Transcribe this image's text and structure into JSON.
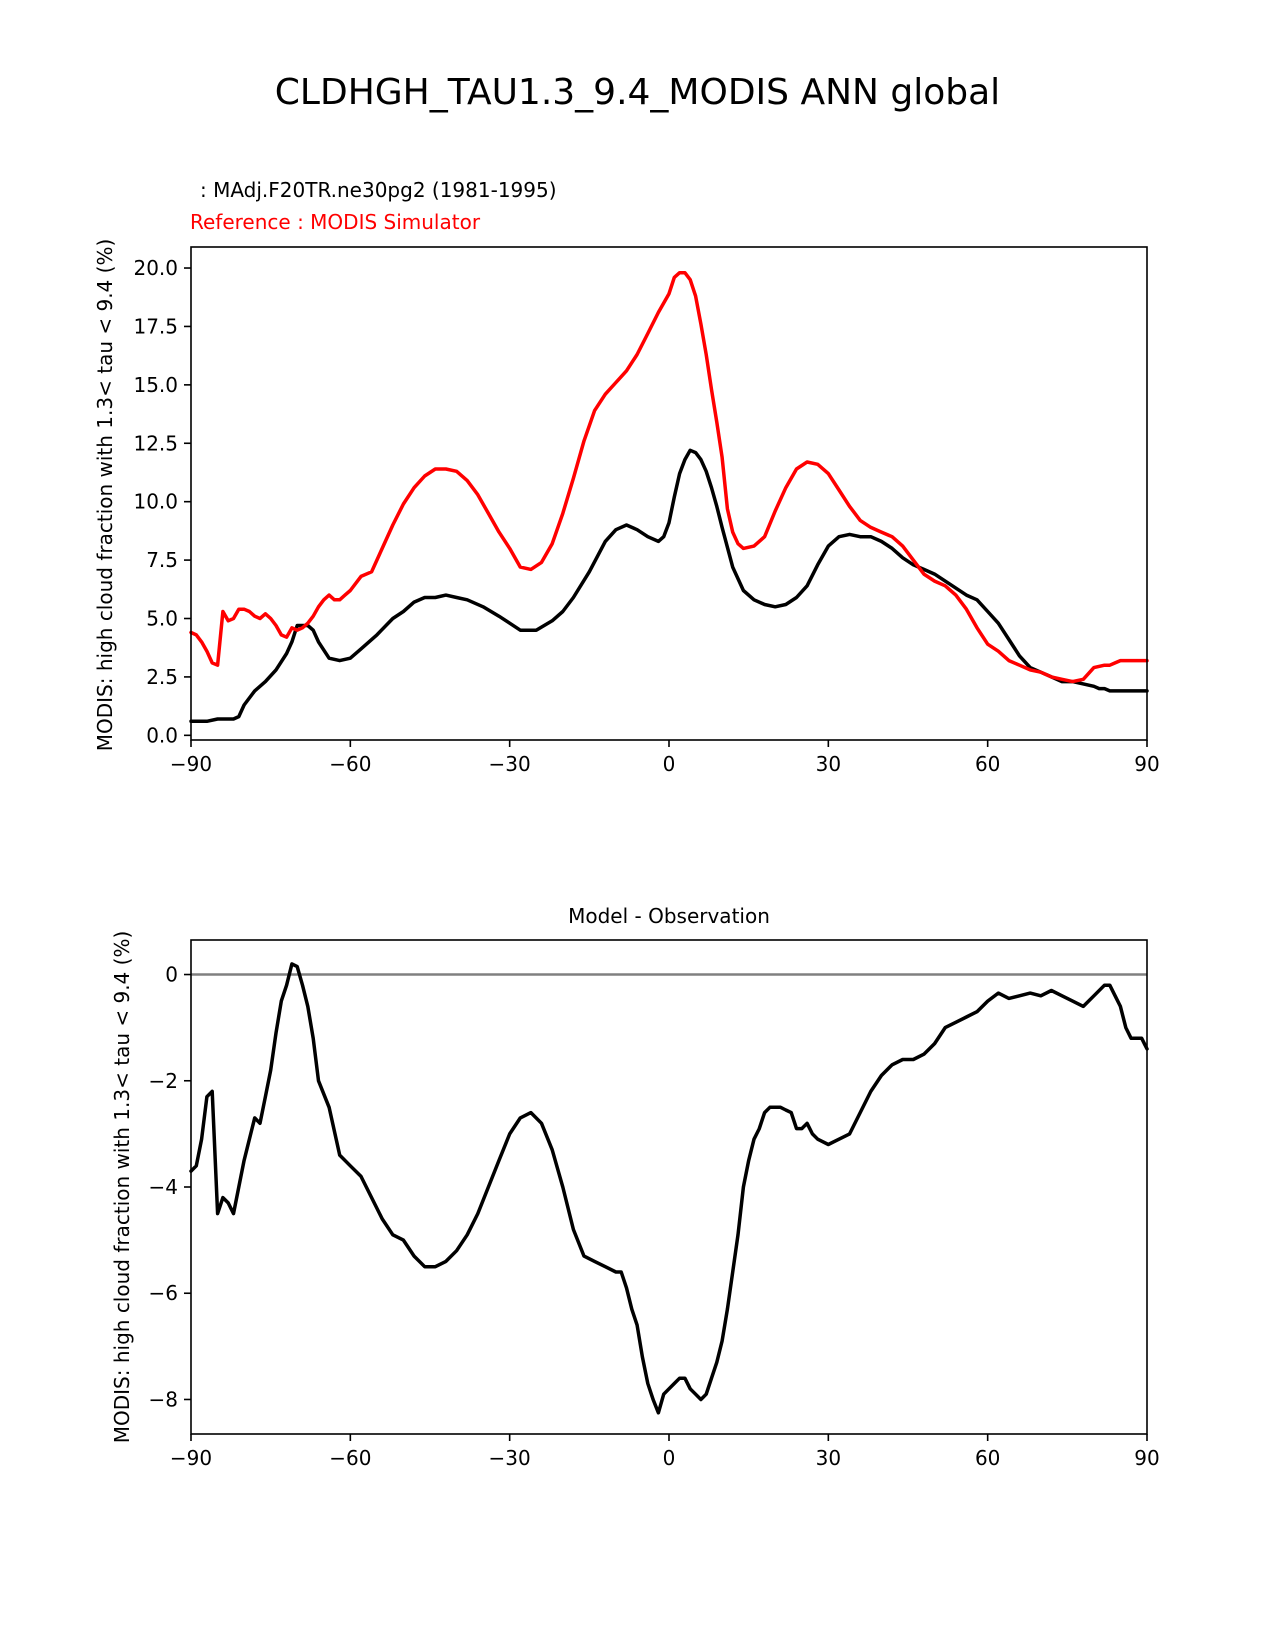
{
  "figure_title": "CLDHGH_TAU1.3_9.4_MODIS ANN global",
  "colors": {
    "test": "#000000",
    "reference": "#ff0000",
    "diff": "#000000",
    "zero_line": "#808080"
  },
  "chart_data": [
    {
      "type": "line",
      "test_label": " : MAdj.F20TR.ne30pg2 (1981-1995)",
      "reference_label": "Reference : MODIS Simulator",
      "xlabel": "",
      "ylabel": "MODIS: high cloud fraction with 1.3< tau < 9.4 (%)",
      "xlim": [
        -90,
        90
      ],
      "ylim": [
        -0.2,
        20.9
      ],
      "xticks": [
        -90,
        -60,
        -30,
        0,
        30,
        60,
        90
      ],
      "xtick_labels": [
        "−90",
        "−60",
        "−30",
        "0",
        "30",
        "60",
        "90"
      ],
      "yticks": [
        0,
        2.5,
        5,
        7.5,
        10,
        12.5,
        15,
        17.5,
        20
      ],
      "ytick_labels": [
        "0.0",
        "2.5",
        "5.0",
        "7.5",
        "10.0",
        "12.5",
        "15.0",
        "17.5",
        "20.0"
      ],
      "legend": "none",
      "grid": false,
      "series": [
        {
          "color": "#000000",
          "x": [
            -90,
            -87,
            -85,
            -82,
            -81,
            -80,
            -78,
            -76,
            -74,
            -72,
            -71,
            -70,
            -68,
            -67,
            -66,
            -64,
            -62,
            -60,
            -58,
            -55,
            -52,
            -50,
            -48,
            -46,
            -44,
            -42,
            -40,
            -38,
            -35,
            -32,
            -30,
            -28,
            -25,
            -22,
            -20,
            -18,
            -15,
            -12,
            -10,
            -8,
            -6,
            -4,
            -2,
            -1,
            0,
            1,
            2,
            3,
            4,
            5,
            6,
            7,
            8,
            9,
            10,
            12,
            14,
            16,
            18,
            20,
            22,
            24,
            26,
            28,
            30,
            32,
            34,
            36,
            38,
            40,
            42,
            44,
            46,
            48,
            50,
            52,
            54,
            56,
            58,
            60,
            62,
            64,
            66,
            68,
            70,
            72,
            74,
            76,
            78,
            80,
            81,
            82,
            83,
            84,
            85,
            86,
            87,
            88,
            90
          ],
          "y": [
            0.6,
            0.6,
            0.7,
            0.7,
            0.8,
            1.3,
            1.9,
            2.3,
            2.8,
            3.5,
            4.0,
            4.7,
            4.7,
            4.5,
            4.0,
            3.3,
            3.2,
            3.3,
            3.7,
            4.3,
            5.0,
            5.3,
            5.7,
            5.9,
            5.9,
            6.0,
            5.9,
            5.8,
            5.5,
            5.1,
            4.8,
            4.5,
            4.5,
            4.9,
            5.3,
            5.9,
            7.0,
            8.3,
            8.8,
            9.0,
            8.8,
            8.5,
            8.3,
            8.5,
            9.1,
            10.2,
            11.2,
            11.8,
            12.2,
            12.1,
            11.8,
            11.3,
            10.6,
            9.8,
            8.9,
            7.2,
            6.2,
            5.8,
            5.6,
            5.5,
            5.6,
            5.9,
            6.4,
            7.3,
            8.1,
            8.5,
            8.6,
            8.5,
            8.5,
            8.3,
            8.0,
            7.6,
            7.3,
            7.1,
            6.9,
            6.6,
            6.3,
            6.0,
            5.8,
            5.3,
            4.8,
            4.1,
            3.4,
            2.9,
            2.7,
            2.5,
            2.3,
            2.3,
            2.2,
            2.1,
            2.0,
            2.0,
            1.9,
            1.9,
            1.9,
            1.9,
            1.9,
            1.9,
            1.9
          ]
        },
        {
          "color": "#ff0000",
          "x": [
            -90,
            -89,
            -88,
            -87,
            -86,
            -85,
            -84,
            -83,
            -82,
            -81,
            -80,
            -79,
            -78,
            -77,
            -76,
            -75,
            -74,
            -73,
            -72,
            -71,
            -70,
            -69,
            -68,
            -67,
            -66,
            -65,
            -64,
            -63,
            -62,
            -61,
            -60,
            -58,
            -56,
            -54,
            -52,
            -50,
            -48,
            -46,
            -44,
            -42,
            -40,
            -38,
            -36,
            -34,
            -32,
            -30,
            -28,
            -26,
            -24,
            -22,
            -20,
            -18,
            -16,
            -14,
            -12,
            -10,
            -8,
            -6,
            -4,
            -2,
            0,
            1,
            2,
            3,
            4,
            5,
            6,
            7,
            8,
            9,
            10,
            11,
            12,
            13,
            14,
            16,
            18,
            20,
            22,
            24,
            26,
            28,
            30,
            32,
            34,
            36,
            38,
            40,
            42,
            44,
            46,
            48,
            50,
            52,
            54,
            56,
            58,
            60,
            62,
            64,
            66,
            68,
            70,
            72,
            74,
            76,
            78,
            80,
            82,
            83,
            84,
            85,
            86,
            87,
            88,
            89,
            90
          ],
          "y": [
            4.4,
            4.3,
            4.0,
            3.6,
            3.1,
            3.0,
            5.3,
            4.9,
            5.0,
            5.4,
            5.4,
            5.3,
            5.1,
            5.0,
            5.2,
            5.0,
            4.7,
            4.3,
            4.2,
            4.6,
            4.5,
            4.6,
            4.8,
            5.1,
            5.5,
            5.8,
            6.0,
            5.8,
            5.8,
            6.0,
            6.2,
            6.8,
            7.0,
            8.0,
            9.0,
            9.9,
            10.6,
            11.1,
            11.4,
            11.4,
            11.3,
            10.9,
            10.3,
            9.5,
            8.7,
            8.0,
            7.2,
            7.1,
            7.4,
            8.2,
            9.5,
            11.0,
            12.6,
            13.9,
            14.6,
            15.1,
            15.6,
            16.3,
            17.2,
            18.1,
            18.9,
            19.6,
            19.8,
            19.8,
            19.5,
            18.8,
            17.6,
            16.3,
            14.8,
            13.4,
            11.9,
            9.7,
            8.7,
            8.2,
            8.0,
            8.1,
            8.5,
            9.6,
            10.6,
            11.4,
            11.7,
            11.6,
            11.2,
            10.5,
            9.8,
            9.2,
            8.9,
            8.7,
            8.5,
            8.1,
            7.5,
            6.9,
            6.6,
            6.4,
            6.0,
            5.4,
            4.6,
            3.9,
            3.6,
            3.2,
            3.0,
            2.8,
            2.7,
            2.5,
            2.4,
            2.3,
            2.4,
            2.9,
            3.0,
            3.0,
            3.1,
            3.2,
            3.2,
            3.2,
            3.2,
            3.2,
            3.2
          ]
        }
      ]
    },
    {
      "type": "line",
      "title": "Model - Observation",
      "xlabel": "",
      "ylabel": "MODIS: high cloud fraction with 1.3< tau < 9.4 (%)",
      "xlim": [
        -90,
        90
      ],
      "ylim": [
        -8.65,
        0.65
      ],
      "xticks": [
        -90,
        -60,
        -30,
        0,
        30,
        60,
        90
      ],
      "xtick_labels": [
        "−90",
        "−60",
        "−30",
        "0",
        "30",
        "60",
        "90"
      ],
      "yticks": [
        0,
        -2,
        -4,
        -6,
        -8
      ],
      "ytick_labels": [
        "0",
        "−2",
        "−4",
        "−6",
        "−8"
      ],
      "zero_line": 0,
      "legend": "none",
      "grid": false,
      "series": [
        {
          "color": "#000000",
          "x": [
            -90,
            -89,
            -88,
            -87,
            -86,
            -85,
            -84,
            -83,
            -82,
            -81,
            -80,
            -78,
            -77,
            -76,
            -75,
            -74,
            -73,
            -72,
            -71,
            -70,
            -69,
            -68,
            -67,
            -66,
            -64,
            -62,
            -60,
            -58,
            -57,
            -56,
            -54,
            -52,
            -50,
            -48,
            -46,
            -44,
            -42,
            -40,
            -38,
            -36,
            -34,
            -32,
            -30,
            -28,
            -26,
            -24,
            -22,
            -20,
            -18,
            -16,
            -14,
            -12,
            -10,
            -9,
            -8,
            -7,
            -6,
            -5,
            -4,
            -3,
            -2,
            -1,
            0,
            1,
            2,
            3,
            4,
            5,
            6,
            7,
            8,
            9,
            10,
            11,
            12,
            13,
            14,
            15,
            16,
            17,
            18,
            19,
            20,
            21,
            22,
            23,
            24,
            25,
            26,
            27,
            28,
            30,
            32,
            34,
            36,
            38,
            40,
            42,
            44,
            46,
            48,
            50,
            52,
            54,
            56,
            58,
            60,
            62,
            64,
            66,
            68,
            70,
            72,
            74,
            76,
            78,
            80,
            82,
            83,
            84,
            85,
            86,
            87,
            88,
            89,
            90
          ],
          "y": [
            -3.7,
            -3.6,
            -3.1,
            -2.3,
            -2.2,
            -4.5,
            -4.2,
            -4.3,
            -4.5,
            -4.0,
            -3.5,
            -2.7,
            -2.8,
            -2.3,
            -1.8,
            -1.1,
            -0.5,
            -0.2,
            0.2,
            0.15,
            -0.2,
            -0.6,
            -1.2,
            -2.0,
            -2.5,
            -3.4,
            -3.6,
            -3.8,
            -4.0,
            -4.2,
            -4.6,
            -4.9,
            -5.0,
            -5.3,
            -5.5,
            -5.5,
            -5.4,
            -5.2,
            -4.9,
            -4.5,
            -4.0,
            -3.5,
            -3.0,
            -2.7,
            -2.6,
            -2.8,
            -3.3,
            -4.0,
            -4.8,
            -5.3,
            -5.4,
            -5.5,
            -5.6,
            -5.6,
            -5.9,
            -6.3,
            -6.6,
            -7.2,
            -7.7,
            -8.0,
            -8.25,
            -7.9,
            -7.8,
            -7.7,
            -7.6,
            -7.6,
            -7.8,
            -7.9,
            -8.0,
            -7.9,
            -7.6,
            -7.3,
            -6.9,
            -6.3,
            -5.6,
            -4.9,
            -4.0,
            -3.5,
            -3.1,
            -2.9,
            -2.6,
            -2.5,
            -2.5,
            -2.5,
            -2.55,
            -2.6,
            -2.9,
            -2.9,
            -2.8,
            -3.0,
            -3.1,
            -3.2,
            -3.1,
            -3.0,
            -2.6,
            -2.2,
            -1.9,
            -1.7,
            -1.6,
            -1.6,
            -1.5,
            -1.3,
            -1.0,
            -0.9,
            -0.8,
            -0.7,
            -0.5,
            -0.35,
            -0.45,
            -0.4,
            -0.35,
            -0.4,
            -0.3,
            -0.4,
            -0.5,
            -0.6,
            -0.4,
            -0.2,
            -0.2,
            -0.4,
            -0.6,
            -1.0,
            -1.2,
            -1.2,
            -1.2,
            -1.4
          ]
        }
      ]
    }
  ]
}
